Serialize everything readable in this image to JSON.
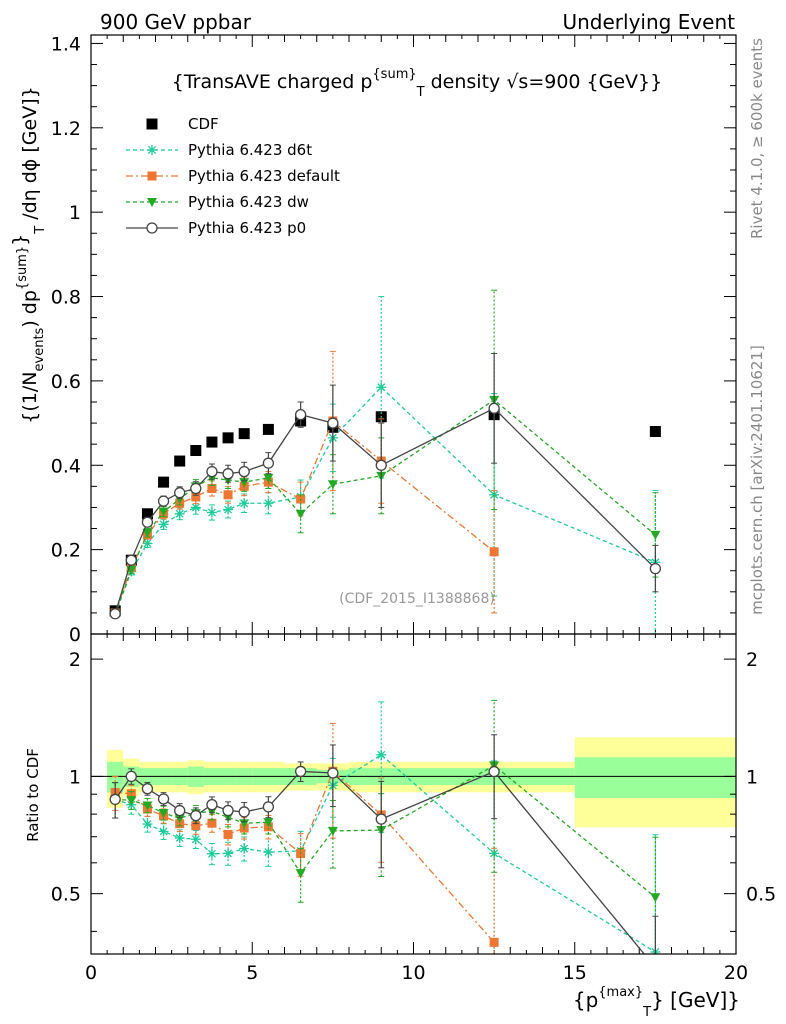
{
  "header": {
    "left": "900 GeV ppbar",
    "right": "Underlying Event"
  },
  "side_labels": {
    "rivet": "Rivet 4.1.0, ≥ 600k events",
    "mcplots": "mcplots.cern.ch [arXiv:2401.10621]"
  },
  "chart_data": [
    {
      "panel": "main",
      "type": "scatter",
      "title": "{TransAVE charged p^{sum}_T density √s=900 {GeV}}",
      "title_parts": {
        "pre": "{TransAVE charged p",
        "sup": "{sum}",
        "sub": "T",
        "post": " density √s=900 {GeV}}"
      },
      "ylabel": "{(1/N_events) dp^{sum}_T /dη dφ [GeV]}",
      "ylabel_parts": {
        "a": "{(1/N",
        "b": "events",
        "c": ") dp",
        "d": "{sum}",
        "e": "}",
        "f": "T",
        "g": " /dη  dϕ [GeV]}"
      },
      "xlim": [
        0,
        20
      ],
      "ylim": [
        0,
        1.42
      ],
      "yticks": [
        0,
        0.2,
        0.4,
        0.6,
        0.8,
        1,
        1.2,
        1.4
      ],
      "ytick_labels": [
        "0",
        "0.2",
        "0.4",
        "0.6",
        "0.8",
        "1",
        "1.2",
        "1.4"
      ],
      "watermark": "(CDF_2015_I1388868)",
      "series": [
        {
          "name": "CDF",
          "color": "#000000",
          "x": [
            0.75,
            1.25,
            1.75,
            2.25,
            2.75,
            3.25,
            3.75,
            4.25,
            4.75,
            5.5,
            6.5,
            7.5,
            9.0,
            12.5,
            17.5
          ],
          "y": [
            0.055,
            0.175,
            0.285,
            0.36,
            0.41,
            0.435,
            0.455,
            0.465,
            0.475,
            0.485,
            0.505,
            0.49,
            0.515,
            0.52,
            0.48
          ]
        },
        {
          "name": "Pythia 6.423 d6t",
          "color": "#1acc9a",
          "x": [
            0.75,
            1.25,
            1.75,
            2.25,
            2.75,
            3.25,
            3.75,
            4.25,
            4.75,
            5.5,
            6.5,
            7.5,
            9.0,
            12.5,
            17.5
          ],
          "y": [
            0.048,
            0.148,
            0.215,
            0.26,
            0.285,
            0.3,
            0.288,
            0.295,
            0.31,
            0.31,
            0.325,
            0.465,
            0.585,
            0.33,
            0.17
          ],
          "err": [
            0.005,
            0.008,
            0.01,
            0.012,
            0.014,
            0.016,
            0.018,
            0.02,
            0.022,
            0.025,
            0.04,
            0.08,
            0.215,
            0.24,
            0.17
          ]
        },
        {
          "name": "Pythia 6.423 default",
          "color": "#ee7733",
          "x": [
            0.75,
            1.25,
            1.75,
            2.25,
            2.75,
            3.25,
            3.75,
            4.25,
            4.75,
            5.5,
            6.5,
            7.5,
            9.0,
            12.5
          ],
          "y": [
            0.05,
            0.158,
            0.235,
            0.285,
            0.31,
            0.325,
            0.345,
            0.33,
            0.35,
            0.36,
            0.32,
            0.505,
            0.41,
            0.195
          ],
          "err": [
            0.005,
            0.008,
            0.01,
            0.012,
            0.014,
            0.016,
            0.018,
            0.02,
            0.022,
            0.025,
            0.04,
            0.165,
            0.1,
            0.145
          ]
        },
        {
          "name": "Pythia 6.423 dw",
          "color": "#22aa22",
          "x": [
            0.75,
            1.25,
            1.75,
            2.25,
            2.75,
            3.25,
            3.75,
            4.25,
            4.75,
            5.5,
            6.5,
            7.5,
            9.0,
            12.5,
            17.5
          ],
          "y": [
            0.048,
            0.152,
            0.24,
            0.29,
            0.32,
            0.35,
            0.37,
            0.365,
            0.36,
            0.37,
            0.285,
            0.355,
            0.375,
            0.555,
            0.235
          ],
          "err": [
            0.005,
            0.008,
            0.01,
            0.012,
            0.014,
            0.016,
            0.018,
            0.02,
            0.022,
            0.025,
            0.045,
            0.07,
            0.09,
            0.26,
            0.1
          ]
        },
        {
          "name": "Pythia 6.423 p0",
          "color": "#444444",
          "x": [
            0.75,
            1.25,
            1.75,
            2.25,
            2.75,
            3.25,
            3.75,
            4.25,
            4.75,
            5.5,
            6.5,
            7.5,
            9.0,
            12.5,
            17.5
          ],
          "y": [
            0.048,
            0.175,
            0.265,
            0.315,
            0.335,
            0.345,
            0.385,
            0.38,
            0.385,
            0.405,
            0.52,
            0.5,
            0.4,
            0.535,
            0.155
          ],
          "err": [
            0.005,
            0.008,
            0.01,
            0.012,
            0.014,
            0.016,
            0.018,
            0.02,
            0.022,
            0.025,
            0.03,
            0.09,
            0.1,
            0.13,
            0.055
          ]
        }
      ]
    },
    {
      "panel": "ratio",
      "type": "line",
      "ylabel": "Ratio to CDF",
      "xlabel": "{p_T^{max}} [GeV]}",
      "xlabel_parts": {
        "pre": "{p",
        "sup": "{max}",
        "sub": "T",
        "post": "} [GeV]}"
      },
      "xlim": [
        0,
        20
      ],
      "ylim": [
        0.35,
        2.32
      ],
      "xticks": [
        0,
        5,
        10,
        15,
        20
      ],
      "xtick_labels": [
        "0",
        "5",
        "10",
        "15",
        "20"
      ],
      "yticks": [
        0.5,
        1,
        2
      ],
      "ytick_labels": [
        "0.5",
        "1",
        "2"
      ],
      "bands": {
        "edges": [
          0.5,
          1.0,
          1.5,
          2.0,
          2.5,
          3.0,
          3.5,
          4.0,
          4.5,
          5.0,
          6.0,
          7.0,
          8.0,
          10.0,
          15.0,
          20.0
        ],
        "inner": [
          0.09,
          0.06,
          0.05,
          0.05,
          0.05,
          0.06,
          0.05,
          0.05,
          0.05,
          0.05,
          0.05,
          0.04,
          0.05,
          0.05,
          0.12
        ],
        "outer": [
          0.17,
          0.11,
          0.09,
          0.09,
          0.09,
          0.1,
          0.09,
          0.09,
          0.09,
          0.09,
          0.08,
          0.08,
          0.09,
          0.09,
          0.26
        ],
        "inner_color": "#99ff99",
        "outer_color": "#ffff99"
      }
    }
  ]
}
